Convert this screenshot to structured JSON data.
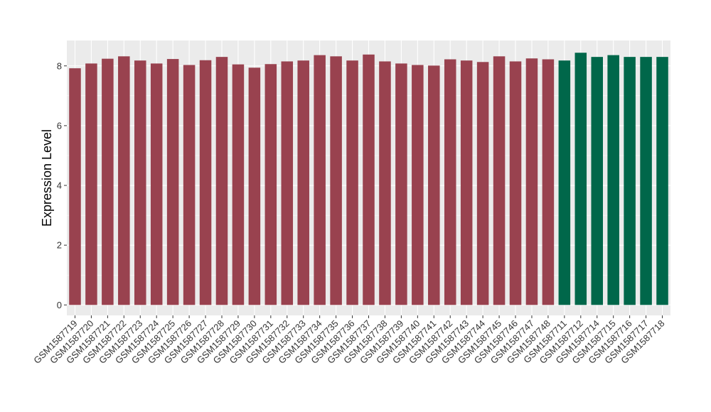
{
  "chart_data": {
    "type": "bar",
    "title": "",
    "xlabel": "",
    "ylabel": "Expression Level",
    "ylim": [
      -0.35,
      8.85
    ],
    "yticks": [
      0,
      2,
      4,
      6,
      8
    ],
    "grid": true,
    "categories": [
      "GSM1587719",
      "GSM1587720",
      "GSM1587721",
      "GSM1587722",
      "GSM1587723",
      "GSM1587724",
      "GSM1587725",
      "GSM1587726",
      "GSM1587727",
      "GSM1587728",
      "GSM1587729",
      "GSM1587730",
      "GSM1587731",
      "GSM1587732",
      "GSM1587733",
      "GSM1587734",
      "GSM1587735",
      "GSM1587736",
      "GSM1587737",
      "GSM1587738",
      "GSM1587739",
      "GSM1587740",
      "GSM1587741",
      "GSM1587742",
      "GSM1587743",
      "GSM1587744",
      "GSM1587745",
      "GSM1587746",
      "GSM1587747",
      "GSM1587748",
      "GSM1587711",
      "GSM1587712",
      "GSM1587714",
      "GSM1587715",
      "GSM1587716",
      "GSM1587717",
      "GSM1587718"
    ],
    "values": [
      7.92,
      8.08,
      8.24,
      8.32,
      8.18,
      8.08,
      8.23,
      8.03,
      8.19,
      8.3,
      8.05,
      7.94,
      8.06,
      8.15,
      8.18,
      8.36,
      8.32,
      8.18,
      8.38,
      8.15,
      8.08,
      8.03,
      8.01,
      8.22,
      8.18,
      8.13,
      8.32,
      8.15,
      8.25,
      8.22,
      8.18,
      8.44,
      8.3,
      8.36,
      8.3,
      8.3,
      8.3
    ],
    "groups": [
      0,
      0,
      0,
      0,
      0,
      0,
      0,
      0,
      0,
      0,
      0,
      0,
      0,
      0,
      0,
      0,
      0,
      0,
      0,
      0,
      0,
      0,
      0,
      0,
      0,
      0,
      0,
      0,
      0,
      0,
      1,
      1,
      1,
      1,
      1,
      1,
      1
    ],
    "colors": {
      "group0": "#99424f",
      "group1": "#00674a",
      "panel": "#ebebeb",
      "grid_major": "#ffffff"
    }
  }
}
